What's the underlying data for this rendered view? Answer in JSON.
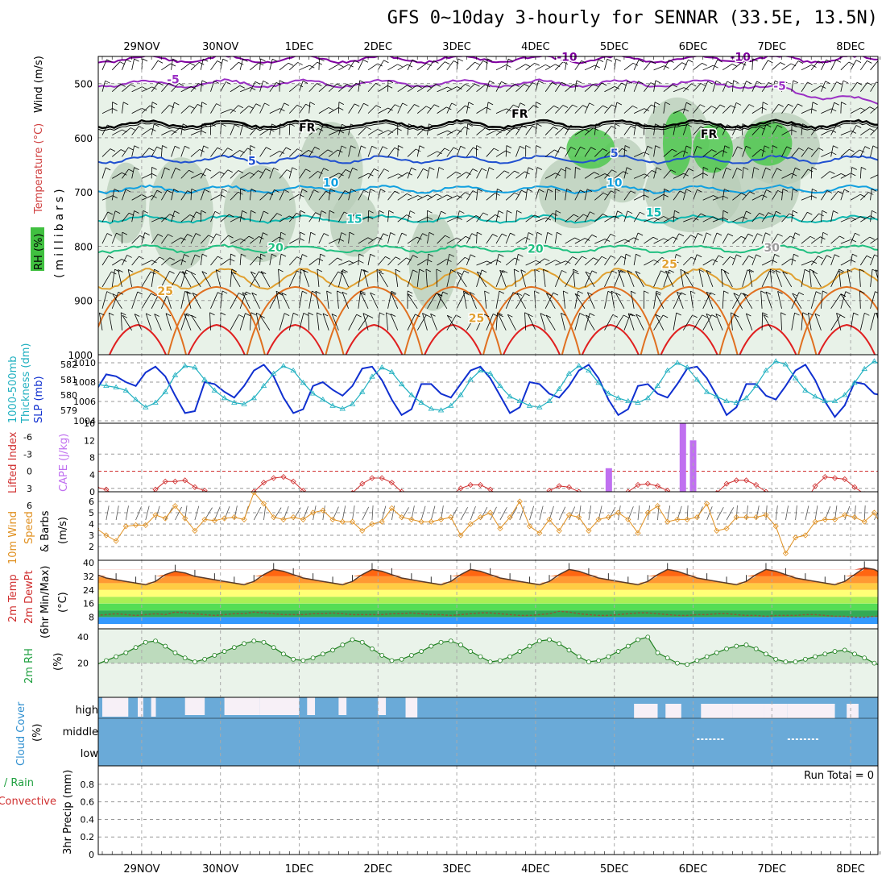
{
  "title": "GFS 0~10day 3-hourly for SENNAR (33.5E, 13.5N)",
  "dates": [
    "29NOV",
    "30NOV",
    "1DEC",
    "2DEC",
    "3DEC",
    "4DEC",
    "5DEC",
    "6DEC",
    "7DEC",
    "8DEC"
  ],
  "chart_data": [
    {
      "type": "line",
      "panel": "upper-air",
      "ylabels": [
        "RH (%)",
        "Temperature (°C)",
        "Wind (m/s)",
        "(millibars)"
      ],
      "y_ticks": [
        500,
        600,
        700,
        800,
        900,
        1000
      ],
      "ylim": [
        1000,
        450
      ],
      "isotherm_labels": [
        "-10",
        "-5",
        "FR",
        "5",
        "10",
        "15",
        "20",
        "25",
        "30"
      ],
      "isotherms": [
        {
          "name": "-10",
          "level_mb": 455
        },
        {
          "name": "-5",
          "level_mb": 500
        },
        {
          "name": "FR",
          "level_mb": 575
        },
        {
          "name": "5",
          "level_mb": 640
        },
        {
          "name": "10",
          "level_mb": 695
        },
        {
          "name": "15",
          "level_mb": 750
        },
        {
          "name": "20",
          "level_mb": 805
        },
        {
          "name": "25",
          "level_mb": 860
        }
      ],
      "colors": {
        "neg10": "#8000a0",
        "neg5": "#9a2fc4",
        "fr": "#000000",
        "t5": "#2050d0",
        "t10": "#10a0e0",
        "t15": "#10b8b0",
        "t20": "#20c080",
        "t25": "#e0a030",
        "t30": "#e07020",
        "t35": "#e02020",
        "rh_light": "#e8f2e8",
        "rh_mid": "#b8ccb8",
        "rh_green": "#50c850"
      }
    },
    {
      "type": "line",
      "panel": "thickness-slp",
      "ylabels": [
        "1000-500mb",
        "Thickness (dm)",
        "SLP (mb)"
      ],
      "left_ticks": [
        "582",
        "581",
        "580",
        "579"
      ],
      "right_ticks": [
        "1010",
        "1008",
        "1006",
        "1004"
      ],
      "series": [
        {
          "name": "SLP (mb)",
          "color": "#1030d0",
          "values": [
            1007.2,
            1008.8,
            1008.6,
            1008.0,
            1007.6,
            1009.0,
            1009.6,
            1008.6,
            1006.6,
            1004.8,
            1005.0,
            1008.0,
            1007.8,
            1007.0,
            1006.4,
            1007.6,
            1009.2,
            1009.8,
            1008.6,
            1006.4,
            1004.8,
            1005.2,
            1007.6,
            1008.0,
            1007.2,
            1006.6,
            1007.6,
            1009.4,
            1009.6,
            1008.2,
            1006.2,
            1004.6,
            1005.2,
            1007.8,
            1007.8,
            1006.8,
            1006.4,
            1007.8,
            1009.2,
            1009.6,
            1008.4,
            1006.6,
            1004.8,
            1005.4,
            1008.0,
            1007.8,
            1006.8,
            1006.4,
            1007.6,
            1009.2,
            1009.8,
            1008.4,
            1006.2,
            1004.6,
            1005.2,
            1007.6,
            1007.8,
            1006.8,
            1006.4,
            1007.8,
            1009.4,
            1009.6,
            1008.4,
            1006.6,
            1004.6,
            1005.4,
            1007.8,
            1007.8,
            1006.6,
            1006.2,
            1007.6,
            1009.2,
            1009.8,
            1008.2,
            1006.0,
            1004.4,
            1005.6,
            1008.0,
            1007.8,
            1006.8,
            1006.6,
            1008.0,
            1009.2,
            1009.6,
            1008.0,
            1006.2,
            1004.4,
            1005.2,
            1007.4,
            1007.6,
            1007.0,
            1006.6,
            1007.2,
            1008.2,
            1008.8
          ]
        },
        {
          "name": "1000-500mb Thickness (dm)",
          "color": "#20b0c0",
          "values": [
            580.7,
            580.6,
            580.5,
            580.3,
            579.7,
            579.2,
            579.5,
            580.2,
            581.3,
            581.9,
            581.8,
            581.0,
            580.3,
            579.8,
            579.5,
            579.4,
            579.8,
            580.6,
            581.4,
            581.9,
            581.6,
            580.8,
            580.1,
            579.7,
            579.3,
            579.1,
            579.4,
            580.2,
            581.2,
            581.8,
            581.5,
            580.7,
            580.0,
            579.5,
            579.1,
            579.0,
            579.3,
            580.0,
            581.0,
            581.6,
            581.4,
            580.6,
            579.9,
            579.6,
            579.3,
            579.2,
            579.6,
            580.4,
            581.4,
            581.9,
            581.6,
            580.8,
            580.1,
            579.8,
            579.6,
            579.5,
            579.8,
            580.6,
            581.6,
            582.1,
            581.8,
            581.0,
            580.2,
            579.9,
            579.6,
            579.5,
            579.8,
            580.6,
            581.6,
            582.2,
            582.0,
            581.1,
            580.3,
            579.9,
            579.6,
            579.6,
            580.0,
            580.8,
            581.7,
            582.2,
            581.9,
            581.0,
            580.3,
            580.0,
            579.7,
            579.6,
            580.0,
            580.8,
            581.8,
            582.1,
            581.8,
            581.0,
            580.0,
            579.3,
            579.1
          ]
        }
      ]
    },
    {
      "type": "bar",
      "panel": "lifted-index-cape",
      "ylabels": [
        "Lifted Index",
        "CAPE (J/kg)"
      ],
      "left_ticks": [
        "-6",
        "-3",
        "0",
        "3",
        "6"
      ],
      "right_ticks": [
        "16",
        "12",
        "8",
        "4",
        "0"
      ],
      "lifted_index": [
        2.8,
        3.2,
        4.6,
        5.8,
        6.1,
        5.4,
        3.2,
        1.8,
        1.8,
        1.6,
        2.8,
        3.4,
        4.4,
        5.2,
        6.2,
        5.8,
        3.6,
        2.0,
        1.2,
        1.0,
        1.8,
        3.4,
        4.6,
        5.6,
        6.2,
        5.6,
        3.8,
        2.2,
        1.2,
        1.2,
        2.0,
        3.6,
        4.8,
        5.6,
        6.2,
        5.8,
        4.2,
        3.0,
        2.4,
        2.4,
        3.2,
        4.6,
        5.6,
        6.2,
        6.2,
        5.0,
        3.4,
        2.6,
        2.8,
        3.6,
        4.8,
        5.8,
        6.2,
        5.6,
        3.6,
        2.4,
        2.2,
        2.6,
        3.4,
        4.6,
        5.6,
        6.2,
        5.8,
        3.8,
        2.2,
        1.6,
        1.6,
        2.4,
        3.6,
        4.8,
        5.6,
        6.2,
        5.4,
        2.6,
        1.0,
        1.2,
        1.4,
        2.8,
        4.0,
        4.8,
        5.2,
        5.0,
        3.4,
        1.6,
        0.4,
        0.6,
        1.8,
        3.2,
        4.6,
        5.4,
        5.8,
        5.4,
        4.0,
        3.0
      ],
      "cape_bars": [
        {
          "x": 6.43,
          "value": 5.5
        },
        {
          "x": 7.37,
          "value": 16.0
        },
        {
          "x": 7.5,
          "value": 12.0
        }
      ],
      "colors": {
        "li": "#d03030",
        "cape": "#c070f0"
      }
    },
    {
      "type": "line",
      "panel": "10m-wind",
      "ylabels": [
        "10m Wind",
        "Speed",
        "& Barbs",
        "(m/s)"
      ],
      "y_ticks": [
        "6",
        "5",
        "4",
        "3",
        "2"
      ],
      "values": [
        3.6,
        3.0,
        2.5,
        3.8,
        3.9,
        3.9,
        4.8,
        4.5,
        5.6,
        4.5,
        3.4,
        4.4,
        4.3,
        4.5,
        4.6,
        4.4,
        6.8,
        5.8,
        4.6,
        4.4,
        4.6,
        4.4,
        5.0,
        5.2,
        4.4,
        4.2,
        4.2,
        3.4,
        4.0,
        4.2,
        5.4,
        4.6,
        4.4,
        4.2,
        4.2,
        4.4,
        4.6,
        3.0,
        4.0,
        4.6,
        5.0,
        3.6,
        4.6,
        6.0,
        3.8,
        3.2,
        4.4,
        3.4,
        4.8,
        4.6,
        3.4,
        4.4,
        4.6,
        5.0,
        4.4,
        3.2,
        5.0,
        5.6,
        4.2,
        4.4,
        4.4,
        4.6,
        5.8,
        3.4,
        3.6,
        4.6,
        4.6,
        4.6,
        4.8,
        3.8,
        1.4,
        2.8,
        3.0,
        4.2,
        4.4,
        4.4,
        4.8,
        4.6,
        4.2,
        5.0,
        3.4,
        2.2,
        3.6,
        4.4,
        4.8,
        4.6,
        3.4,
        2.8,
        3.6,
        4.2,
        4.4,
        3.2,
        2.0,
        4.6,
        5.4
      ]
    },
    {
      "type": "area",
      "panel": "2m-temperature",
      "ylabels": [
        "2m Temp",
        "2m DewPt",
        "(6hr Min/Max)",
        "(°C)"
      ],
      "y_ticks": [
        "40",
        "32",
        "24",
        "16",
        "8"
      ],
      "temperature": [
        33.0,
        31.0,
        30.0,
        29.0,
        28.0,
        27.0,
        29.0,
        33.0,
        35.0,
        34.0,
        32.0,
        31.0,
        30.0,
        29.0,
        28.0,
        27.0,
        29.0,
        33.0,
        36.0,
        35.0,
        33.0,
        31.0,
        30.0,
        29.0,
        28.0,
        27.0,
        29.0,
        33.0,
        36.0,
        35.0,
        33.0,
        31.0,
        30.0,
        29.0,
        28.0,
        27.0,
        29.0,
        33.0,
        36.0,
        35.0,
        33.0,
        31.0,
        30.0,
        29.0,
        28.0,
        27.0,
        29.0,
        33.0,
        36.0,
        35.0,
        33.0,
        31.0,
        30.0,
        29.0,
        28.0,
        27.0,
        29.0,
        33.0,
        36.0,
        35.0,
        33.0,
        31.0,
        30.0,
        29.0,
        28.0,
        27.0,
        29.0,
        33.0,
        36.0,
        35.0,
        33.0,
        31.0,
        30.0,
        29.0,
        28.0,
        27.0,
        29.0,
        33.0,
        37.0,
        36.0,
        33.0,
        31.0,
        30.0,
        29.0,
        28.0,
        27.0,
        29.0,
        33.0,
        37.0,
        36.0,
        33.0,
        31.0,
        30.0,
        29.0,
        30.0
      ],
      "dewpoint": [
        9.0,
        9.5,
        10.0,
        9.5,
        9.0,
        9.5,
        10.0,
        9.5,
        11.0,
        10.5,
        10.0,
        9.5,
        9.0,
        9.5,
        10.0,
        10.0,
        11.0,
        10.5,
        10.0,
        9.5,
        9.5,
        9.5,
        10.0,
        10.0,
        10.5,
        10.0,
        9.5,
        9.5,
        9.5,
        9.5,
        10.0,
        10.0,
        10.5,
        10.0,
        9.5,
        9.5,
        9.0,
        9.5,
        10.0,
        10.5,
        10.5,
        10.0,
        9.5,
        9.0,
        9.0,
        9.5,
        10.0,
        11.5,
        11.0,
        10.0,
        9.5,
        9.0,
        9.0,
        9.5,
        10.0,
        10.5,
        10.5,
        10.0,
        9.5,
        9.0,
        9.0,
        9.5,
        9.5,
        10.0,
        10.0,
        9.5,
        9.0,
        9.0,
        8.5,
        9.0,
        9.0,
        9.0,
        9.5,
        9.5,
        9.0,
        8.5,
        8.5,
        8.0,
        8.0,
        8.5,
        8.5,
        9.0,
        8.5,
        8.0,
        7.5,
        7.0,
        7.5,
        8.0,
        8.0,
        7.5,
        7.0,
        6.5,
        6.0,
        6.5,
        8.0
      ],
      "band_colors": [
        "#3399ff",
        "#33aa55",
        "#55dd55",
        "#aaee55",
        "#ffff77",
        "#ffcc44",
        "#ff9933",
        "#ff6611",
        "#dd2200",
        "#aa0000"
      ]
    },
    {
      "type": "line",
      "panel": "2m-rh",
      "ylabels": [
        "2m RH",
        "(%)"
      ],
      "y_ticks": [
        "40",
        "20"
      ],
      "values": [
        19.0,
        22.0,
        25.0,
        28.0,
        32.0,
        36.0,
        37.0,
        33.0,
        28.0,
        24.0,
        21.0,
        23.0,
        26.0,
        29.0,
        32.0,
        35.0,
        37.0,
        36.0,
        32.0,
        27.0,
        23.0,
        22.0,
        24.0,
        27.0,
        30.0,
        34.0,
        38.0,
        36.0,
        31.0,
        26.0,
        22.0,
        23.0,
        26.0,
        29.0,
        33.0,
        36.0,
        37.0,
        34.0,
        29.0,
        25.0,
        21.0,
        22.0,
        25.0,
        29.0,
        33.0,
        37.0,
        38.0,
        35.0,
        30.0,
        25.0,
        21.0,
        22.0,
        25.0,
        29.0,
        33.0,
        38.0,
        40.0,
        28.0,
        24.0,
        20.0,
        19.0,
        22.0,
        25.0,
        28.0,
        31.0,
        33.0,
        34.0,
        31.0,
        27.0,
        23.0,
        21.0,
        21.0,
        23.0,
        25.0,
        27.0,
        29.0,
        30.0,
        27.0,
        24.0,
        20.0,
        17.0,
        19.0,
        21.0,
        23.0,
        26.0,
        29.0,
        31.0,
        28.0,
        24.0,
        19.0,
        17.0,
        18.0,
        20.0,
        21.0,
        23.0
      ],
      "fill_color": "#b8d8b8",
      "line_color": "#208020"
    },
    {
      "type": "bar",
      "panel": "cloud-cover",
      "ylabels": [
        "Cloud Cover",
        "(%)"
      ],
      "layer_labels": [
        "high",
        "middle",
        "low"
      ],
      "color": "#6aaad8"
    },
    {
      "type": "bar",
      "panel": "precipitation",
      "ylabels": [
        "Total / Rain",
        "Convective",
        "3hr Precip (mm)"
      ],
      "y_ticks": [
        "0.8",
        "0.6",
        "0.4",
        "0.2",
        "0"
      ],
      "ylim": [
        0,
        0.9
      ],
      "values": [],
      "run_total_label": "Run Total = 0"
    }
  ]
}
